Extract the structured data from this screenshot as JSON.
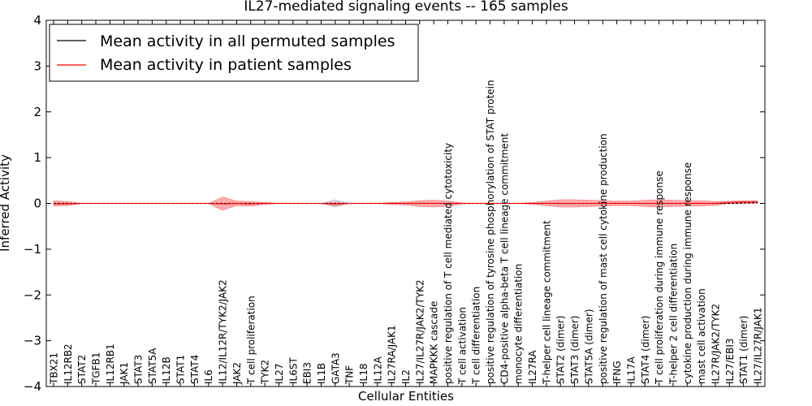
{
  "chart_data": {
    "type": "line",
    "title": "IL27-mediated signaling events -- 165 samples",
    "xlabel": "Cellular Entities",
    "ylabel": "Inferred Activity",
    "ylim": [
      -4,
      4
    ],
    "yticks": [
      -4,
      -3,
      -2,
      -1,
      0,
      1,
      2,
      3,
      4
    ],
    "ytick_labels": [
      "−4",
      "−3",
      "−2",
      "−1",
      "0",
      "1",
      "2",
      "3",
      "4"
    ],
    "legend_position": "top-left",
    "categories": [
      "TBX21",
      "IL12RB2",
      "STAT2",
      "TGFB1",
      "IL12RB1",
      "JAK1",
      "STAT3",
      "STAT5A",
      "IL12B",
      "STAT1",
      "STAT4",
      "IL6",
      "IL12/IL12R/TYK2/JAK2",
      "JAK2",
      "T cell proliferation",
      "TYK2",
      "IL27",
      "IL6ST",
      "EBI3",
      "IL1B",
      "GATA3",
      "TNF",
      "IL18",
      "IL12A",
      "IL27RA/JAK1",
      "IL2",
      "IL27/IL27R/JAK2/TYK2",
      "MAPKKK cascade",
      "positive regulation of T cell mediated cytotoxicity",
      "T cell activation",
      "T cell differentiation",
      "positive regulation of tyrosine phosphorylation of STAT protein",
      "CD4-positive alpha-beta T cell lineage commitment",
      "monocyte differentiation",
      "IL27RA",
      "T-helper cell lineage commitment",
      "STAT2 (dimer)",
      "STAT3 (dimer)",
      "STAT5A (dimer)",
      "positive regulation of mast cell cytokine production",
      "IFNG",
      "IL17A",
      "STAT4 (dimer)",
      "T cell proliferation during immune response",
      "T-helper 2 cell differentiation",
      "cytokine production during immune response",
      "mast cell activation",
      "IL27R/JAK2/TYK2",
      "IL27/EBI3",
      "STAT1 (dimer)",
      "IL27/IL27R/JAK1"
    ],
    "series": [
      {
        "name": "Mean activity in all permuted samples",
        "color": "#000000",
        "values": [
          0,
          0,
          0,
          0,
          0,
          0,
          0,
          0,
          0,
          0,
          0,
          0,
          0,
          0,
          0,
          0,
          0,
          0,
          0,
          0,
          0,
          0,
          0,
          0,
          0,
          0,
          0,
          0,
          0,
          0,
          0,
          0,
          0,
          0,
          0,
          0,
          0,
          0,
          0,
          0,
          0,
          0,
          0,
          0,
          0,
          0,
          0,
          0,
          0,
          0.01,
          0.02
        ]
      },
      {
        "name": "Mean activity in patient samples",
        "color": "#ff0000",
        "values": [
          -0.01,
          -0.01,
          0,
          0,
          0,
          0,
          0,
          0,
          0,
          0,
          0,
          0,
          -0.01,
          0,
          -0.01,
          0,
          0,
          0,
          0,
          0,
          -0.01,
          0,
          0,
          0,
          0,
          0,
          0,
          0,
          0,
          0,
          0,
          0,
          0,
          0,
          0,
          0,
          0,
          0,
          0,
          0,
          0,
          0,
          0,
          0,
          0,
          0,
          0,
          0,
          0.02,
          0.03,
          0.03
        ]
      }
    ],
    "spread": {
      "color": "#ff6666",
      "upper": [
        0.06,
        0.04,
        0,
        0,
        0,
        0,
        0,
        0,
        0,
        0,
        0,
        0,
        0.14,
        0.05,
        0.04,
        0.02,
        0,
        0,
        0,
        0,
        0.02,
        0,
        0,
        0,
        0.02,
        0.03,
        0.06,
        0.07,
        0.05,
        0.01,
        0,
        0.01,
        0,
        0,
        0.02,
        0.05,
        0.08,
        0.08,
        0.07,
        0.06,
        0.05,
        0.05,
        0.07,
        0.08,
        0.07,
        0.06,
        0.06,
        0.04,
        0.05,
        0.06,
        0.06
      ],
      "lower": [
        -0.06,
        -0.05,
        0,
        0,
        0,
        0,
        0,
        0,
        0,
        0,
        0,
        0,
        -0.15,
        -0.05,
        -0.06,
        -0.02,
        0,
        0,
        0,
        0,
        -0.05,
        0,
        0,
        0,
        -0.02,
        -0.03,
        -0.07,
        -0.08,
        -0.06,
        -0.01,
        0,
        -0.01,
        0,
        0,
        -0.02,
        -0.05,
        -0.08,
        -0.08,
        -0.07,
        -0.06,
        -0.05,
        -0.05,
        -0.07,
        -0.08,
        -0.07,
        -0.06,
        -0.06,
        -0.04,
        0,
        0,
        0
      ]
    },
    "grey_spread": {
      "color": "#b0b0c8",
      "upper": [
        0,
        0,
        0,
        0,
        0,
        0,
        0,
        0,
        0,
        0,
        0,
        0,
        0,
        0,
        0,
        0,
        0,
        0,
        0,
        0,
        0.08,
        0,
        0,
        0,
        0,
        0,
        0,
        0,
        0,
        0,
        0,
        0,
        0,
        0,
        0,
        0,
        0,
        0,
        0,
        0,
        0,
        0,
        0,
        0,
        0,
        0,
        0,
        0,
        0,
        0,
        0
      ],
      "lower": [
        0,
        0,
        0,
        0,
        0,
        0,
        0,
        0,
        0,
        0,
        0,
        0,
        0,
        0,
        0,
        0,
        0,
        0,
        0,
        0,
        -0.08,
        0,
        0,
        0,
        0,
        0,
        0,
        0,
        0,
        0,
        0,
        0,
        0,
        0,
        0,
        0,
        0,
        0,
        0,
        0,
        0,
        0,
        0,
        0,
        0,
        0,
        0,
        0,
        0,
        0,
        0
      ]
    }
  }
}
